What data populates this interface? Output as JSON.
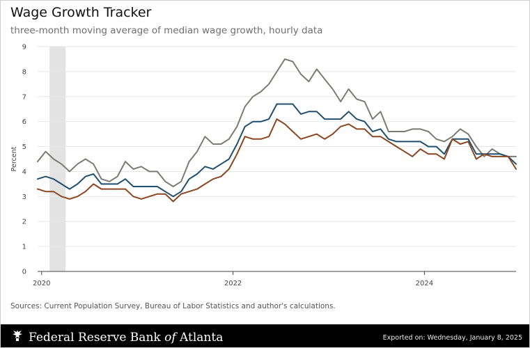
{
  "header": {
    "title": "Wage Growth Tracker",
    "subtitle": "three-month moving average of median wage growth, hourly data"
  },
  "source": "Sources: Current Population Survey, Bureau of Labor Statistics and author's calculations.",
  "footer": {
    "org_part1": "Federal Reserve Bank ",
    "org_of": "of",
    "org_part2": " Atlanta",
    "exported": "Exported on: Wednesday, January 8, 2025",
    "logo_icon": "eagle-seal-icon"
  },
  "colors": {
    "gray": "#7b7b75",
    "blue": "#1f4e6e",
    "brown": "#8b4520",
    "recession": "#e3e3e3",
    "grid": "#e6e6e6"
  },
  "chart_data": {
    "type": "line",
    "title": "Wage Growth Tracker",
    "subtitle": "three-month moving average of median wage growth, hourly data",
    "xlabel": "",
    "ylabel": "Percent",
    "ylim": [
      0,
      9
    ],
    "yticks": [
      0,
      1,
      2,
      3,
      4,
      5,
      6,
      7,
      8,
      9
    ],
    "xlim": [
      2019.958,
      2024.958
    ],
    "xticks": [
      {
        "value": 2020,
        "label": "2020"
      },
      {
        "value": 2022,
        "label": "2022"
      },
      {
        "value": 2024,
        "label": "2024"
      }
    ],
    "grid": "horizontal",
    "shaded_period": {
      "start": 2020.083,
      "end": 2020.25
    },
    "x": [
      2019.958,
      2020.042,
      2020.125,
      2020.208,
      2020.292,
      2020.375,
      2020.458,
      2020.542,
      2020.625,
      2020.708,
      2020.792,
      2020.875,
      2020.958,
      2021.042,
      2021.125,
      2021.208,
      2021.292,
      2021.375,
      2021.458,
      2021.542,
      2021.625,
      2021.708,
      2021.792,
      2021.875,
      2021.958,
      2022.042,
      2022.125,
      2022.208,
      2022.292,
      2022.375,
      2022.458,
      2022.542,
      2022.625,
      2022.708,
      2022.792,
      2022.875,
      2022.958,
      2023.042,
      2023.125,
      2023.208,
      2023.292,
      2023.375,
      2023.458,
      2023.542,
      2023.625,
      2023.708,
      2023.792,
      2023.875,
      2023.958,
      2024.042,
      2024.125,
      2024.208,
      2024.292,
      2024.375,
      2024.458,
      2024.542,
      2024.625,
      2024.708,
      2024.792,
      2024.875,
      2024.958
    ],
    "series": [
      {
        "color": "#7b7b75",
        "values": [
          4.4,
          4.8,
          4.5,
          4.3,
          4.0,
          4.3,
          4.5,
          4.3,
          3.7,
          3.6,
          3.8,
          4.4,
          4.1,
          4.2,
          4.0,
          4.0,
          3.6,
          3.4,
          3.6,
          4.4,
          4.8,
          5.4,
          5.1,
          5.1,
          5.3,
          5.8,
          6.6,
          7.0,
          7.2,
          7.5,
          8.0,
          8.5,
          8.4,
          7.9,
          7.6,
          8.1,
          7.7,
          7.3,
          6.8,
          7.3,
          6.9,
          6.8,
          6.1,
          6.4,
          5.6,
          5.6,
          5.6,
          5.7,
          5.7,
          5.6,
          5.3,
          5.2,
          5.4,
          5.7,
          5.5,
          5.0,
          4.6,
          4.9,
          4.7,
          4.6,
          4.6
        ]
      },
      {
        "color": "#1f4e6e",
        "values": [
          3.7,
          3.8,
          3.7,
          3.5,
          3.3,
          3.5,
          3.8,
          3.9,
          3.5,
          3.5,
          3.5,
          3.7,
          3.4,
          3.4,
          3.4,
          3.4,
          3.2,
          3.0,
          3.2,
          3.7,
          3.9,
          4.2,
          4.1,
          4.3,
          4.5,
          5.1,
          5.8,
          6.0,
          6.0,
          6.1,
          6.7,
          6.7,
          6.7,
          6.3,
          6.4,
          6.4,
          6.1,
          6.1,
          6.1,
          6.4,
          6.1,
          6.0,
          5.6,
          5.7,
          5.3,
          5.2,
          5.2,
          5.2,
          5.2,
          5.0,
          5.0,
          4.7,
          5.3,
          5.3,
          5.3,
          4.7,
          4.7,
          4.7,
          4.7,
          4.6,
          4.3
        ]
      },
      {
        "color": "#8b4520",
        "values": [
          3.3,
          3.2,
          3.2,
          3.0,
          2.9,
          3.0,
          3.2,
          3.5,
          3.3,
          3.3,
          3.3,
          3.3,
          3.0,
          2.9,
          3.0,
          3.1,
          3.1,
          2.8,
          3.1,
          3.2,
          3.3,
          3.5,
          3.7,
          3.8,
          4.1,
          4.7,
          5.4,
          5.3,
          5.3,
          5.4,
          6.1,
          5.9,
          5.6,
          5.3,
          5.4,
          5.5,
          5.3,
          5.5,
          5.8,
          5.9,
          5.7,
          5.7,
          5.4,
          5.4,
          5.2,
          5.0,
          4.8,
          4.6,
          4.9,
          4.7,
          4.7,
          4.5,
          5.3,
          5.1,
          5.2,
          4.5,
          4.7,
          4.6,
          4.6,
          4.6,
          4.1
        ]
      }
    ]
  }
}
